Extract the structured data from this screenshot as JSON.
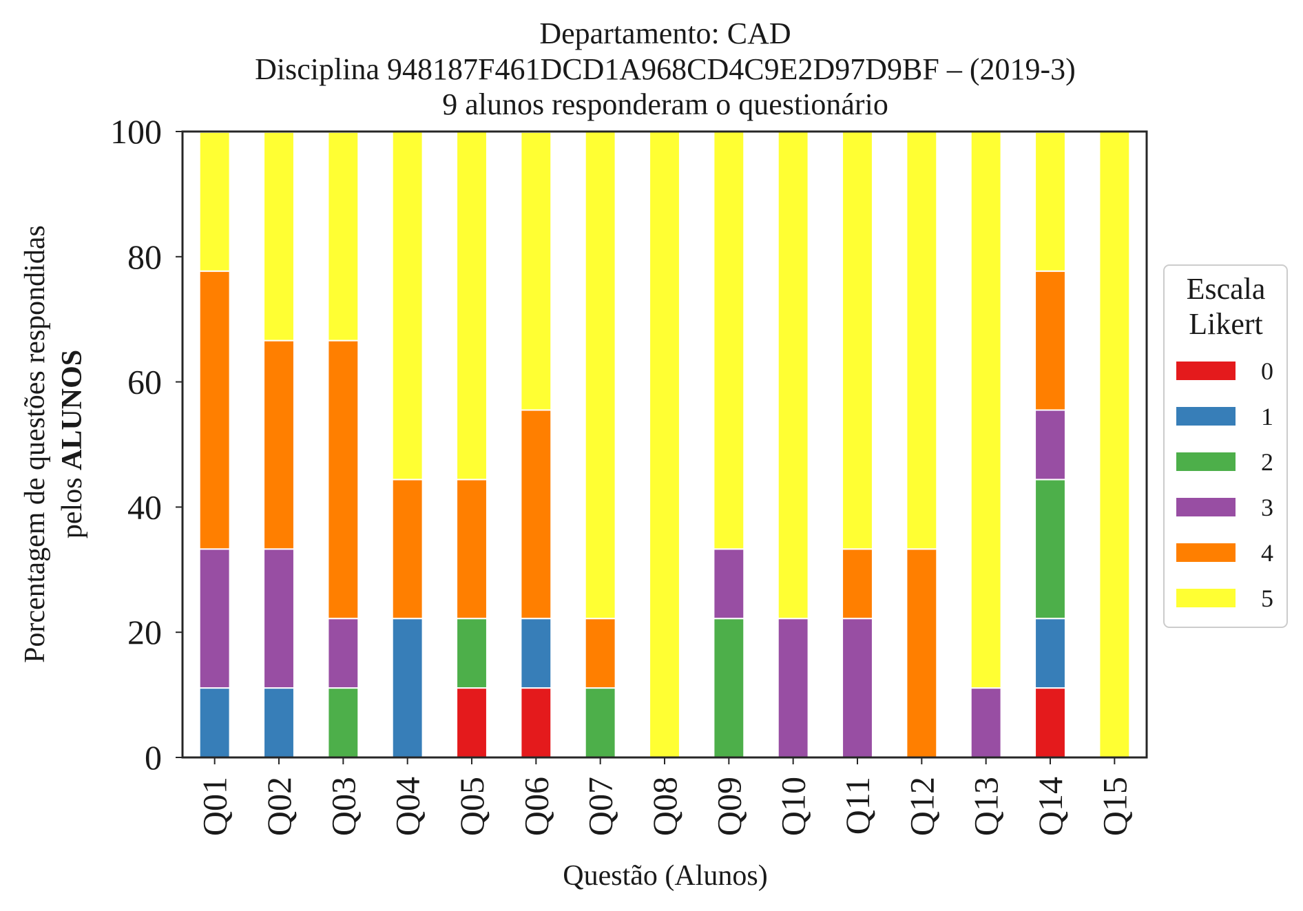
{
  "chart_data": {
    "type": "bar",
    "stacked": true,
    "title_lines": [
      "Departamento: CAD",
      "Disciplina 948187F461DCD1A968CD4C9E2D97D9BF – (2019-3)",
      "9 alunos responderam o questionário"
    ],
    "ylabel_line1": "Porcentagem de questões respondidas",
    "ylabel_line2_prefix": "pelos ",
    "ylabel_line2_bold": "ALUNOS",
    "xlabel": "Questão (Alunos)",
    "ylim": [
      0,
      100
    ],
    "yticks": [
      "0",
      "20",
      "40",
      "60",
      "80",
      "100"
    ],
    "grid": false,
    "legend": {
      "title_line1": "Escala",
      "title_line2": "Likert",
      "placement": "center-right outside",
      "entries": [
        "0",
        "1",
        "2",
        "3",
        "4",
        "5"
      ]
    },
    "categories": [
      "Q01",
      "Q02",
      "Q03",
      "Q04",
      "Q05",
      "Q06",
      "Q07",
      "Q08",
      "Q09",
      "Q10",
      "Q11",
      "Q12",
      "Q13",
      "Q14",
      "Q15"
    ],
    "series": [
      {
        "name": "0",
        "color": "#e41a1c",
        "values": [
          0,
          0,
          0,
          0,
          11.1,
          11.1,
          0,
          0,
          0,
          0,
          0,
          0,
          0,
          11.1,
          0
        ]
      },
      {
        "name": "1",
        "color": "#377eb8",
        "values": [
          11.1,
          11.1,
          0,
          22.2,
          0,
          11.1,
          0,
          0,
          0,
          0,
          0,
          0,
          0,
          11.1,
          0
        ]
      },
      {
        "name": "2",
        "color": "#4daf4a",
        "values": [
          0,
          0,
          11.1,
          0,
          11.1,
          0,
          11.1,
          0,
          22.2,
          0,
          0,
          0,
          0,
          22.2,
          0
        ]
      },
      {
        "name": "3",
        "color": "#984ea3",
        "values": [
          22.2,
          22.2,
          11.1,
          0,
          0,
          0,
          0,
          0,
          11.1,
          22.2,
          22.2,
          0,
          11.1,
          11.1,
          0
        ]
      },
      {
        "name": "4",
        "color": "#ff7f00",
        "values": [
          44.4,
          33.3,
          44.4,
          22.2,
          22.2,
          33.3,
          11.1,
          0,
          0,
          0,
          11.1,
          33.3,
          0,
          22.2,
          0
        ]
      },
      {
        "name": "5",
        "color": "#ffff33",
        "values": [
          22.2,
          33.3,
          33.3,
          55.6,
          55.6,
          44.4,
          77.8,
          100,
          66.7,
          77.8,
          66.7,
          66.7,
          88.9,
          22.2,
          100
        ]
      }
    ]
  }
}
